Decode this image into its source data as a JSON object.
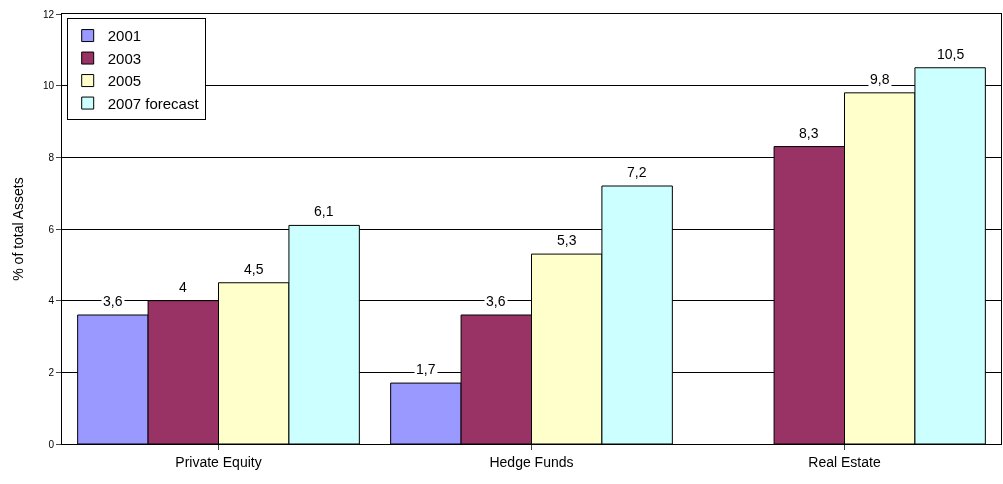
{
  "chart_data": {
    "type": "bar",
    "ylabel": "% of total Assets",
    "categories": [
      "Private Equity",
      "Hedge Funds",
      "Real Estate"
    ],
    "series": [
      {
        "name": "2001",
        "color": "#9999ff",
        "values": [
          3.6,
          1.7,
          null
        ],
        "value_labels": [
          "3,6",
          "1,7",
          null
        ]
      },
      {
        "name": "2003",
        "color": "#993366",
        "values": [
          4,
          3.6,
          8.3
        ],
        "value_labels": [
          "4",
          "3,6",
          "8,3"
        ]
      },
      {
        "name": "2005",
        "color": "#ffffcc",
        "values": [
          4.5,
          5.3,
          9.8
        ],
        "value_labels": [
          "4,5",
          "5,3",
          "9,8"
        ]
      },
      {
        "name": "2007 forecast",
        "color": "#ccffff",
        "values": [
          6.1,
          7.2,
          10.5
        ],
        "value_labels": [
          "6,1",
          "7,2",
          "10,5"
        ]
      }
    ],
    "ylim": [
      0,
      12
    ],
    "yticks": [
      0,
      2,
      4,
      6,
      8,
      10,
      12
    ],
    "grid": "y",
    "legend": "top left"
  }
}
